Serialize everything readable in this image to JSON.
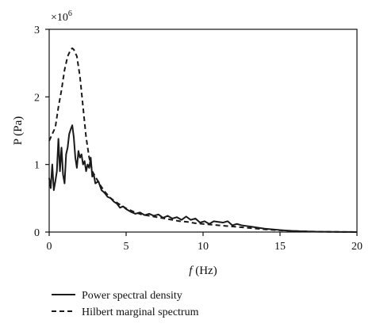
{
  "chart_data": {
    "type": "line",
    "title": "",
    "xlabel_italic": "f",
    "xlabel_rest": " (Hz)",
    "ylabel": "P (Pa)",
    "y_multiplier": "×10",
    "y_multiplier_exp": "6",
    "xlim": [
      0,
      20
    ],
    "ylim": [
      0,
      3
    ],
    "x_ticks": [
      0,
      5,
      10,
      15,
      20
    ],
    "y_ticks": [
      0,
      1,
      2,
      3
    ],
    "grid": false,
    "legend_position": "bottom-left, below axes",
    "colors": {
      "line": "#1a1a1a",
      "axis": "#111111"
    },
    "series": [
      {
        "name": "Power spectral density",
        "style": "solid",
        "x": [
          0.0,
          0.1,
          0.2,
          0.3,
          0.4,
          0.5,
          0.6,
          0.7,
          0.8,
          0.9,
          1.0,
          1.1,
          1.2,
          1.3,
          1.4,
          1.5,
          1.6,
          1.7,
          1.8,
          1.9,
          2.0,
          2.1,
          2.2,
          2.3,
          2.4,
          2.5,
          2.6,
          2.7,
          2.8,
          2.9,
          3.0,
          3.2,
          3.4,
          3.6,
          3.8,
          4.0,
          4.2,
          4.4,
          4.6,
          4.8,
          5.0,
          5.3,
          5.6,
          5.9,
          6.2,
          6.5,
          6.8,
          7.1,
          7.4,
          7.7,
          8.0,
          8.3,
          8.6,
          8.9,
          9.2,
          9.5,
          9.8,
          10.1,
          10.4,
          10.7,
          11.0,
          11.3,
          11.6,
          11.9,
          12.2,
          12.5,
          12.8,
          13.1,
          13.4,
          13.7,
          14.0,
          14.5,
          15.0,
          15.5,
          16.0,
          16.5,
          17.0,
          17.5,
          18.0,
          18.5,
          19.0,
          19.5,
          20.0
        ],
        "y": [
          0.8,
          0.65,
          1.0,
          0.62,
          0.75,
          0.9,
          1.38,
          0.9,
          1.25,
          0.85,
          0.72,
          1.15,
          1.25,
          1.45,
          1.52,
          1.58,
          1.4,
          1.1,
          0.95,
          1.2,
          1.1,
          1.15,
          1.0,
          1.05,
          0.9,
          1.0,
          0.95,
          1.1,
          0.82,
          0.85,
          0.72,
          0.75,
          0.62,
          0.58,
          0.52,
          0.5,
          0.45,
          0.42,
          0.36,
          0.38,
          0.34,
          0.3,
          0.27,
          0.29,
          0.25,
          0.27,
          0.24,
          0.26,
          0.21,
          0.24,
          0.2,
          0.22,
          0.18,
          0.23,
          0.18,
          0.2,
          0.14,
          0.16,
          0.12,
          0.16,
          0.15,
          0.14,
          0.16,
          0.1,
          0.12,
          0.1,
          0.09,
          0.08,
          0.07,
          0.06,
          0.05,
          0.04,
          0.03,
          0.02,
          0.015,
          0.01,
          0.008,
          0.005,
          0.004,
          0.003,
          0.002,
          0.001,
          0.0
        ]
      },
      {
        "name": "Hilbert marginal spectrum",
        "style": "dashed",
        "x": [
          0.0,
          0.2,
          0.4,
          0.6,
          0.8,
          1.0,
          1.2,
          1.4,
          1.5,
          1.6,
          1.8,
          2.0,
          2.2,
          2.4,
          2.6,
          2.8,
          3.0,
          3.3,
          3.6,
          4.0,
          4.5,
          5.0,
          5.5,
          6.0,
          6.5,
          7.0,
          7.5,
          8.0,
          8.5,
          9.0,
          9.5,
          10.0,
          10.5,
          11.0,
          11.5,
          12.0,
          12.5,
          13.0,
          13.5,
          14.0,
          15.0,
          16.0,
          17.0,
          18.0,
          19.0,
          20.0
        ],
        "y": [
          1.35,
          1.45,
          1.55,
          1.85,
          2.1,
          2.4,
          2.6,
          2.7,
          2.72,
          2.7,
          2.6,
          2.3,
          1.85,
          1.4,
          1.1,
          0.9,
          0.82,
          0.7,
          0.6,
          0.5,
          0.42,
          0.35,
          0.3,
          0.26,
          0.24,
          0.22,
          0.2,
          0.18,
          0.16,
          0.15,
          0.13,
          0.12,
          0.11,
          0.1,
          0.09,
          0.08,
          0.07,
          0.06,
          0.05,
          0.04,
          0.025,
          0.015,
          0.008,
          0.004,
          0.002,
          0.0
        ]
      }
    ]
  }
}
